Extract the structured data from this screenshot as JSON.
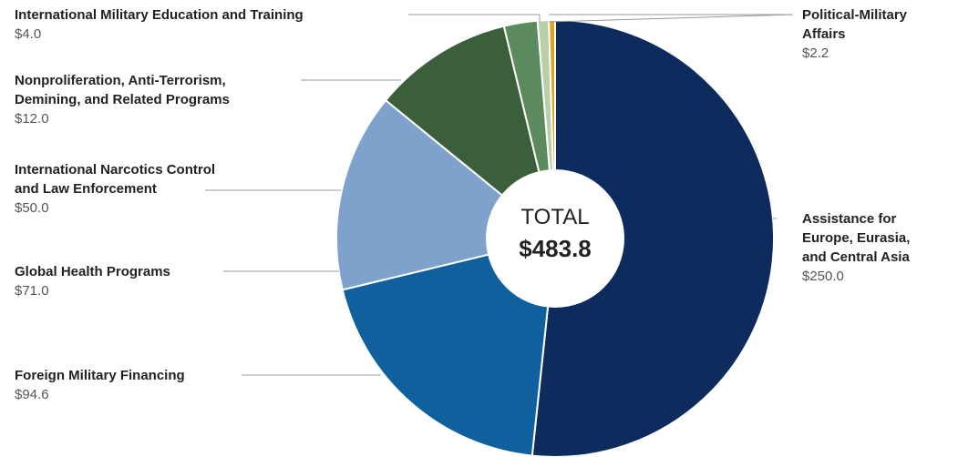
{
  "chart_data": {
    "type": "donut",
    "categories": [
      "Assistance for\nEurope, Eurasia,\nand Central Asia",
      "Foreign Military Financing",
      "Global Health Programs",
      "International Narcotics Control\nand Law Enforcement",
      "Nonproliferation, Anti-Terrorism,\nDemining, and Related Programs",
      "International Military Education and Training",
      "Political-Military\nAffairs"
    ],
    "values": [
      250.0,
      94.6,
      71.0,
      50.0,
      12.0,
      4.0,
      2.2
    ],
    "value_labels": [
      "$250.0",
      "$94.6",
      "$71.0",
      "$50.0",
      "$12.0",
      "$4.0",
      "$2.2"
    ],
    "colors": [
      "#0d2b5c",
      "#10609e",
      "#7fa2cc",
      "#3c5f3b",
      "#5b8a5f",
      "#b9cfa8",
      "#e0a21c"
    ],
    "center_text": [
      "TOTAL",
      "$483.8"
    ]
  }
}
